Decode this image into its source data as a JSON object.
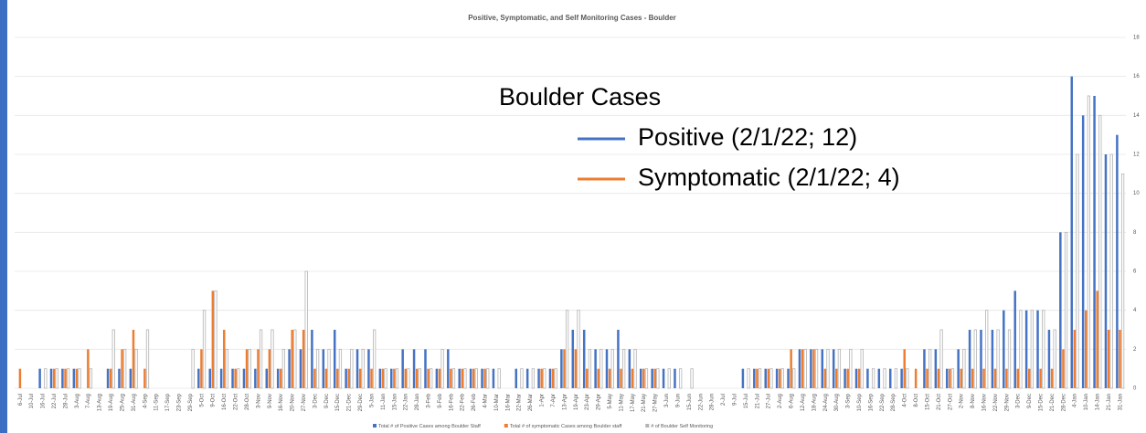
{
  "chart_data": {
    "type": "bar",
    "title": "Positive, Symptomatic, and Self Monitoring Cases - Boulder",
    "categories": [
      "6-Jul",
      "10-Jul",
      "16-Jul",
      "22-Jul",
      "28-Jul",
      "3-Aug",
      "7-Aug",
      "13-Aug",
      "19-Aug",
      "25-Aug",
      "31-Aug",
      "4-Sep",
      "11-Sep",
      "17-Sep",
      "23-Sep",
      "29-Sep",
      "5-Oct",
      "9-Oct",
      "16-Oct",
      "22-Oct",
      "28-Oct",
      "3-Nov",
      "9-Nov",
      "16-Nov",
      "20-Nov",
      "27-Nov",
      "3-Dec",
      "9-Dec",
      "15-Dec",
      "21-Dec",
      "29-Dec",
      "5-Jan",
      "11-Jan",
      "15-Jan",
      "22-Jan",
      "28-Jan",
      "3-Feb",
      "9-Feb",
      "16-Feb",
      "22-Feb",
      "26-Feb",
      "4-Mar",
      "10-Mar",
      "16-Mar",
      "22-Mar",
      "26-Mar",
      "1-Apr",
      "7-Apr",
      "13-Apr",
      "19-Apr",
      "23-Apr",
      "29-Apr",
      "5-May",
      "11-May",
      "17-May",
      "21-May",
      "27-May",
      "3-Jun",
      "9-Jun",
      "15-Jun",
      "22-Jun",
      "28-Jun",
      "2-Jul",
      "9-Jul",
      "15-Jul",
      "21-Jul",
      "27-Jul",
      "2-Aug",
      "6-Aug",
      "12-Aug",
      "18-Aug",
      "24-Aug",
      "30-Aug",
      "3-Sep",
      "10-Sep",
      "16-Sep",
      "22-Sep",
      "28-Sep",
      "4-Oct",
      "8-Oct",
      "15-Oct",
      "21-Oct",
      "27-Oct",
      "2-Nov",
      "8-Nov",
      "16-Nov",
      "22-Nov",
      "29-Nov",
      "3-Dec",
      "9-Dec",
      "15-Dec",
      "21-Dec",
      "28-Dec",
      "4-Jan",
      "10-Jan",
      "14-Jan",
      "21-Jan",
      "31-Jan"
    ],
    "series": [
      {
        "name": "Total # of Positive Cases among Boulder Staff",
        "color": "#4472c4",
        "values": [
          0,
          0,
          1,
          1,
          1,
          1,
          0,
          0,
          1,
          1,
          1,
          0,
          0,
          0,
          0,
          0,
          1,
          1,
          1,
          1,
          1,
          1,
          1,
          1,
          2,
          2,
          3,
          2,
          3,
          1,
          2,
          2,
          1,
          1,
          2,
          2,
          2,
          1,
          2,
          1,
          1,
          1,
          1,
          0,
          1,
          1,
          1,
          1,
          2,
          3,
          3,
          2,
          2,
          3,
          2,
          1,
          1,
          1,
          1,
          0,
          0,
          0,
          0,
          0,
          1,
          1,
          1,
          1,
          1,
          2,
          2,
          2,
          2,
          1,
          1,
          1,
          1,
          1,
          1,
          0,
          2,
          2,
          1,
          2,
          3,
          3,
          3,
          4,
          5,
          4,
          4,
          3,
          8,
          16,
          14,
          15,
          12,
          13
        ]
      },
      {
        "name": "Total # of symptomatic Cases among Boulder staff",
        "color": "#ed7d31",
        "values": [
          1,
          0,
          0,
          1,
          1,
          1,
          2,
          0,
          1,
          2,
          3,
          1,
          0,
          0,
          0,
          0,
          2,
          5,
          3,
          1,
          2,
          2,
          2,
          1,
          3,
          3,
          1,
          1,
          1,
          1,
          1,
          1,
          1,
          1,
          1,
          1,
          1,
          1,
          1,
          1,
          1,
          1,
          0,
          0,
          0,
          0,
          1,
          1,
          2,
          2,
          1,
          1,
          1,
          1,
          1,
          1,
          1,
          0,
          0,
          0,
          0,
          0,
          0,
          0,
          0,
          1,
          1,
          1,
          2,
          2,
          2,
          1,
          1,
          1,
          1,
          0,
          0,
          0,
          2,
          1,
          1,
          1,
          1,
          1,
          1,
          1,
          1,
          1,
          1,
          1,
          1,
          1,
          2,
          3,
          4,
          5,
          3,
          3
        ]
      },
      {
        "name": "# of Boulder Self Monitoring",
        "color": "#b4b4b4",
        "values": [
          0,
          0,
          1,
          1,
          1,
          1,
          1,
          0,
          3,
          2,
          2,
          3,
          0,
          0,
          0,
          2,
          4,
          5,
          2,
          1,
          2,
          3,
          3,
          2,
          3,
          6,
          2,
          2,
          2,
          2,
          2,
          3,
          1,
          1,
          1,
          1,
          1,
          2,
          1,
          1,
          1,
          1,
          1,
          0,
          1,
          1,
          1,
          1,
          4,
          4,
          2,
          2,
          2,
          2,
          2,
          1,
          1,
          1,
          1,
          1,
          0,
          0,
          0,
          0,
          1,
          1,
          1,
          1,
          1,
          2,
          2,
          2,
          2,
          2,
          2,
          1,
          1,
          1,
          1,
          0,
          2,
          3,
          1,
          2,
          3,
          4,
          3,
          3,
          4,
          4,
          4,
          3,
          8,
          12,
          15,
          14,
          12,
          11
        ]
      }
    ],
    "ylim": [
      0,
      18
    ],
    "yticks": [
      0,
      2,
      4,
      6,
      8,
      10,
      12,
      14,
      16,
      18
    ],
    "grid": true,
    "annotation": {
      "title": "Boulder Cases",
      "items": [
        {
          "text": "Positive (2/1/22; 12)",
          "color": "#4472c4"
        },
        {
          "text": "Symptomatic (2/1/22; 4)",
          "color": "#ed7d31"
        }
      ]
    }
  }
}
